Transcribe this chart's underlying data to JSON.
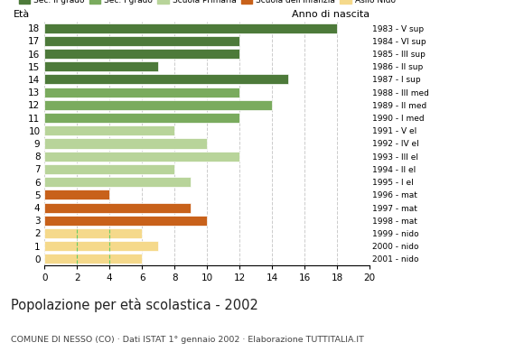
{
  "ages": [
    18,
    17,
    16,
    15,
    14,
    13,
    12,
    11,
    10,
    9,
    8,
    7,
    6,
    5,
    4,
    3,
    2,
    1,
    0
  ],
  "values": [
    18,
    12,
    12,
    7,
    15,
    12,
    14,
    12,
    8,
    10,
    12,
    8,
    9,
    4,
    9,
    10,
    6,
    7,
    6
  ],
  "categories": [
    "Sec. II grado",
    "Sec. I grado",
    "Scuola Primaria",
    "Scuola dell'Infanzia",
    "Asilo Nido"
  ],
  "bar_colors": [
    "#4d7a3a",
    "#4d7a3a",
    "#4d7a3a",
    "#4d7a3a",
    "#4d7a3a",
    "#7aab5e",
    "#7aab5e",
    "#7aab5e",
    "#b8d49a",
    "#b8d49a",
    "#b8d49a",
    "#b8d49a",
    "#b8d49a",
    "#c8611a",
    "#c8611a",
    "#c8611a",
    "#f5d98b",
    "#f5d98b",
    "#f5d98b"
  ],
  "right_labels": [
    "1983 - V sup",
    "1984 - VI sup",
    "1985 - III sup",
    "1986 - II sup",
    "1987 - I sup",
    "1988 - III med",
    "1989 - II med",
    "1990 - I med",
    "1991 - V el",
    "1992 - IV el",
    "1993 - III el",
    "1994 - II el",
    "1995 - I el",
    "1996 - mat",
    "1997 - mat",
    "1998 - mat",
    "1999 - nido",
    "2000 - nido",
    "2001 - nido"
  ],
  "legend_colors": [
    "#4d7a3a",
    "#7aab5e",
    "#b8d49a",
    "#c8611a",
    "#f5d98b"
  ],
  "title": "Popolazione per età scolastica - 2002",
  "subtitle": "COMUNE DI NESSO (CO) · Dati ISTAT 1° gennaio 2002 · Elaborazione TUTTITALIA.IT",
  "ylabel": "Età",
  "anno_label": "Anno di nascita",
  "xlim": [
    0,
    20
  ],
  "xticks": [
    0,
    2,
    4,
    6,
    8,
    10,
    12,
    14,
    16,
    18,
    20
  ],
  "bg_color": "#ffffff",
  "grid_color": "#cccccc",
  "nido_dash_color": "#66cc66"
}
